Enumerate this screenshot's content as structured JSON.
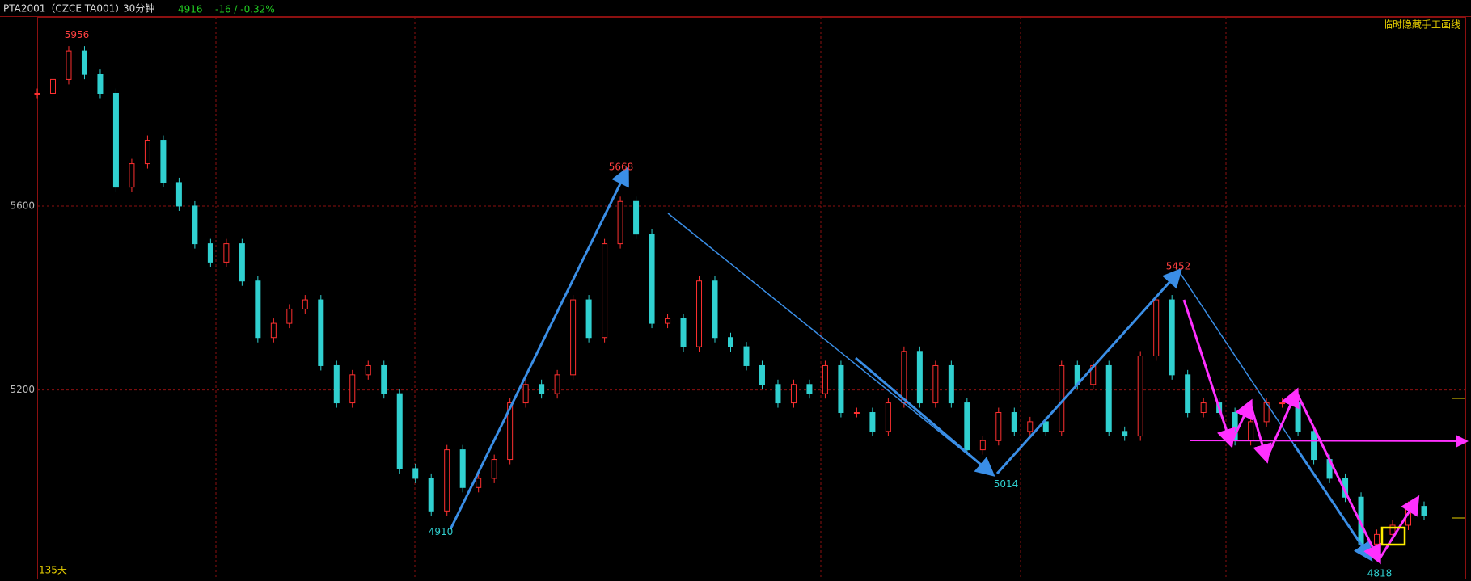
{
  "header": {
    "symbol": "PTA2001（CZCE TA001）",
    "period": "30分钟",
    "last": "4916",
    "change": "-16 / -0.32%",
    "hide_button": "临时隐藏手工画线"
  },
  "chart_data": {
    "type": "candlestick",
    "up_color": "#ff3030",
    "down_color": "#30d0d0",
    "values": [
      5845,
      5875,
      5937,
      5886,
      5845,
      5641,
      5692,
      5743,
      5651,
      5600,
      5518,
      5478,
      5518,
      5437,
      5314,
      5345,
      5376,
      5396,
      5253,
      5172,
      5233,
      5253,
      5192,
      5029,
      5008,
      4937,
      5070,
      4988,
      5008,
      5049,
      5172,
      5212,
      5192,
      5233,
      5396,
      5314,
      5518,
      5610,
      5539,
      5345,
      5355,
      5294,
      5437,
      5314,
      5294,
      5253,
      5212,
      5172,
      5212,
      5192,
      5253,
      5151,
      5151,
      5110,
      5172,
      5284,
      5172,
      5253,
      5172,
      5070,
      5090,
      5151,
      5110,
      5131,
      5110,
      5253,
      5212,
      5253,
      5110,
      5100,
      5274,
      5396,
      5233,
      5151,
      5172,
      5151,
      5090,
      5131,
      5172,
      5172,
      5110,
      5049,
      5008,
      4967,
      4865,
      4886,
      4906,
      4947,
      4927
    ],
    "ylim": [
      4790,
      6011
    ],
    "yticks": [
      5600,
      5200
    ],
    "grid": true,
    "peak_labels": [
      5956,
      5668,
      5452
    ],
    "trough_labels": [
      4910,
      5014,
      4818
    ],
    "period_label": "135天"
  }
}
